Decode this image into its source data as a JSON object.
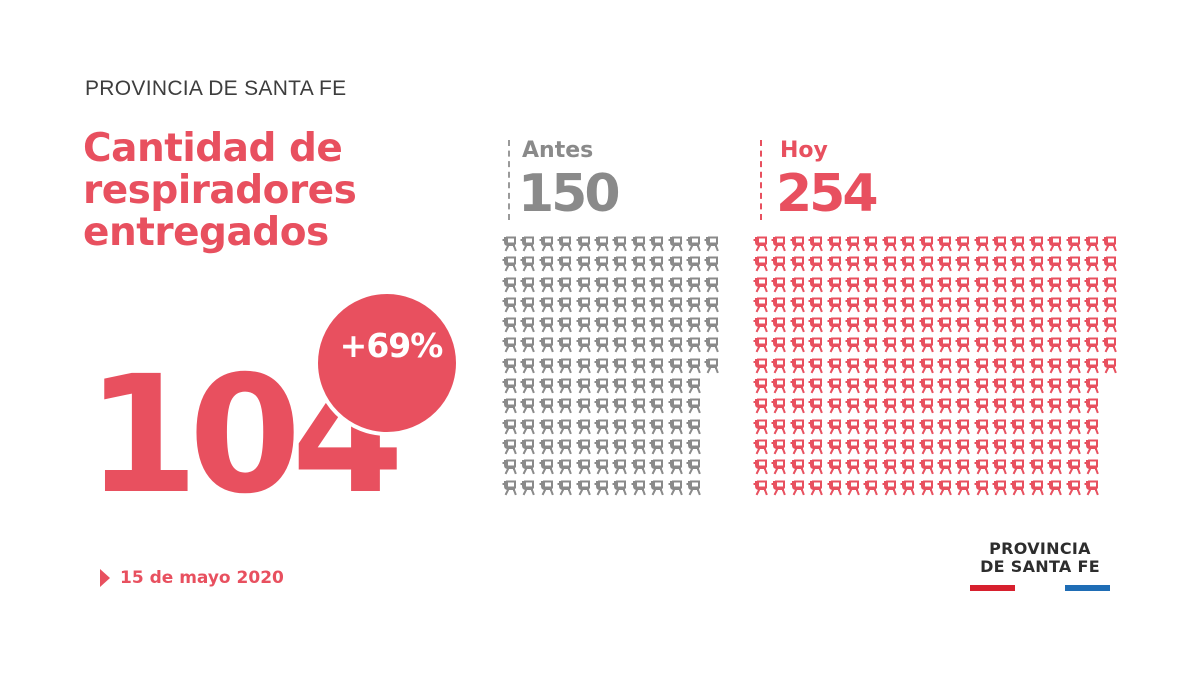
{
  "header": {
    "kicker": "PROVINCIA DE SANTA FE",
    "title_lines": [
      "Cantidad de",
      "respiradores",
      "entregados"
    ]
  },
  "highlight": {
    "difference": "104",
    "badge": "+69%"
  },
  "before": {
    "label": "Antes",
    "value": "150",
    "count": 150,
    "columns": 12,
    "color": "#8a8a8a",
    "icon": "ventilator-icon"
  },
  "today": {
    "label": "Hoy",
    "value": "254",
    "count": 254,
    "columns": 20,
    "color": "#e8505f",
    "icon": "ventilator-icon"
  },
  "footer": {
    "date": "15 de mayo 2020",
    "logo_line1": "PROVINCIA",
    "logo_line2": "DE SANTA FE",
    "logo_colors": [
      "#d7202e",
      "#1f6db5"
    ]
  },
  "colors": {
    "accent": "#e8505f",
    "grey": "#8a8a8a",
    "text": "#3d3d3d"
  },
  "chart_data": {
    "type": "pictogram",
    "title": "Cantidad de respiradores entregados",
    "categories": [
      "Antes",
      "Hoy"
    ],
    "values": [
      150,
      254
    ],
    "difference": 104,
    "percent_change": "+69%",
    "date": "15 de mayo 2020"
  }
}
